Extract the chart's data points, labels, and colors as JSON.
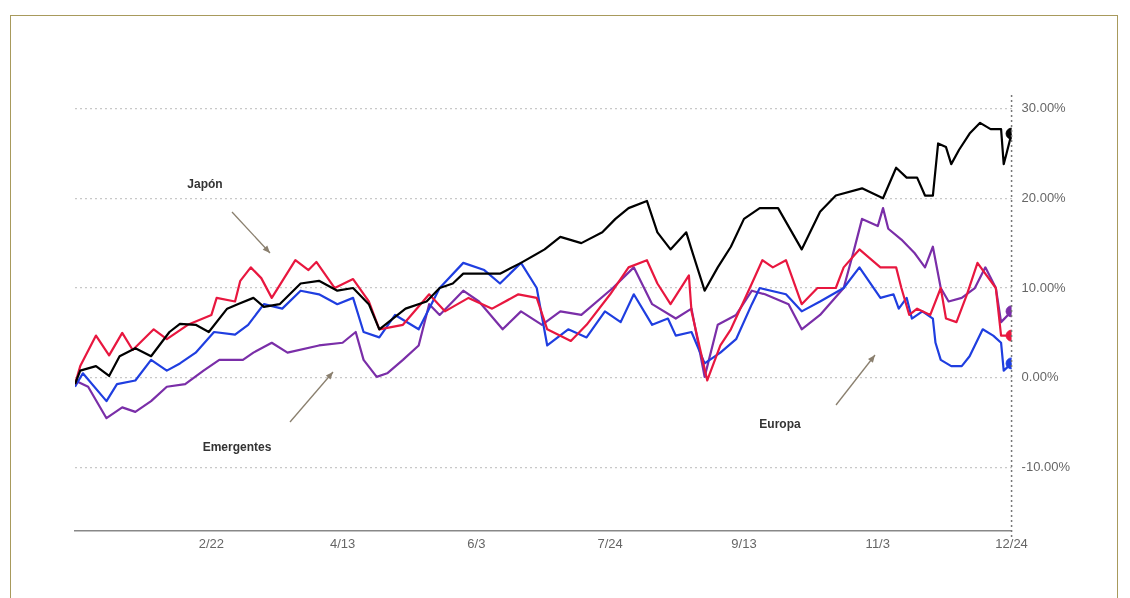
{
  "chart_data": {
    "type": "line",
    "xlim": [
      "--01-01",
      "--12-24"
    ],
    "ylim": [
      -17,
      31.5
    ],
    "xticks": [
      {
        "value": "--02-22",
        "label": "2/22"
      },
      {
        "value": "--04-13",
        "label": "4/13"
      },
      {
        "value": "--06-03",
        "label": "6/3"
      },
      {
        "value": "--07-24",
        "label": "7/24"
      },
      {
        "value": "--09-13",
        "label": "9/13"
      },
      {
        "value": "--11-03",
        "label": "11/3"
      },
      {
        "value": "--12-24",
        "label": "12/24"
      }
    ],
    "yticks": [
      {
        "value": -10,
        "label": "-10.00%"
      },
      {
        "value": 0,
        "label": "0.00%"
      },
      {
        "value": 10,
        "label": "10.00%"
      },
      {
        "value": 20,
        "label": "20.00%"
      },
      {
        "value": 30,
        "label": "30.00%"
      }
    ],
    "grid": "y",
    "legend": false,
    "line_style": "solid",
    "series": [
      {
        "color": "#000000",
        "x": [
          "--01-01",
          "--01-03",
          "--01-09",
          "--01-14",
          "--01-18",
          "--01-24",
          "--01-30",
          "--02-06",
          "--02-10",
          "--02-16",
          "--02-21",
          "--02-28",
          "--03-04",
          "--03-10",
          "--03-14",
          "--03-20",
          "--03-28",
          "--04-04",
          "--04-11",
          "--04-17",
          "--04-23",
          "--04-27",
          "--05-07",
          "--05-15",
          "--05-20",
          "--05-25",
          "--05-29",
          "--06-12",
          "--06-20",
          "--06-29",
          "--07-05",
          "--07-13",
          "--07-21",
          "--07-26",
          "--07-31",
          "--08-07",
          "--08-11",
          "--08-16",
          "--08-22",
          "--08-24",
          "--08-29",
          "--09-03",
          "--09-08",
          "--09-13",
          "--09-19",
          "--09-26",
          "--10-05",
          "--10-12",
          "--10-18",
          "--10-28",
          "--11-05",
          "--11-10",
          "--11-14",
          "--11-18",
          "--11-21",
          "--11-24",
          "--11-26",
          "--11-29",
          "--12-01",
          "--12-04",
          "--12-08",
          "--12-12",
          "--12-16",
          "--12-20",
          "--12-21",
          "--12-22",
          "--12-24"
        ],
        "values": [
          -0.7,
          0.8,
          1.3,
          0.2,
          2.4,
          3.3,
          2.4,
          5.1,
          6,
          5.9,
          5.1,
          7.7,
          8.2,
          8.9,
          7.9,
          8.2,
          10.5,
          10.8,
          9.7,
          10,
          8.2,
          5.4,
          7.7,
          8.5,
          10,
          10.5,
          11.6,
          11.6,
          12.8,
          14.3,
          15.7,
          15,
          16.2,
          17.7,
          18.9,
          19.7,
          16.2,
          14.3,
          16.2,
          14.3,
          9.7,
          12.3,
          14.6,
          17.7,
          18.9,
          18.9,
          14.3,
          18.5,
          20.3,
          21.1,
          20,
          23.4,
          22.3,
          22.3,
          20.3,
          20.3,
          26.1,
          25.7,
          23.8,
          25.4,
          27.2,
          28.4,
          27.7,
          27.7,
          23.8,
          24.9,
          27.2
        ]
      },
      {
        "color": "#e8173f",
        "x": [
          "--01-01",
          "--01-03",
          "--01-09",
          "--01-14",
          "--01-19",
          "--01-23",
          "--01-31",
          "--02-05",
          "--02-13",
          "--02-22",
          "--02-24",
          "--03-03",
          "--03-05",
          "--03-09",
          "--03-13",
          "--03-17",
          "--03-26",
          "--03-31",
          "--04-03",
          "--04-10",
          "--04-17",
          "--04-23",
          "--04-27",
          "--05-06",
          "--05-16",
          "--05-22",
          "--05-31",
          "--06-09",
          "--06-19",
          "--06-26",
          "--06-30",
          "--07-09",
          "--07-15",
          "--07-24",
          "--07-31",
          "--08-07",
          "--08-11",
          "--08-16",
          "--08-23",
          "--08-24",
          "--08-30",
          "--09-04",
          "--09-08",
          "--09-16",
          "--09-20",
          "--09-24",
          "--09-29",
          "--10-05",
          "--10-11",
          "--10-18",
          "--10-21",
          "--10-27",
          "--11-04",
          "--11-10",
          "--11-12",
          "--11-15",
          "--11-18",
          "--11-23",
          "--11-27",
          "--11-29",
          "--12-03",
          "--12-07",
          "--12-11",
          "--12-13",
          "--12-18",
          "--12-20",
          "--12-24"
        ],
        "values": [
          -0.7,
          1.3,
          4.7,
          2.5,
          5,
          3.1,
          5.4,
          4.3,
          5.9,
          7,
          8.9,
          8.5,
          10.8,
          12.3,
          11.1,
          8.9,
          13.1,
          12,
          12.9,
          10,
          11,
          8.5,
          5.4,
          5.9,
          9.3,
          7.4,
          8.9,
          7.7,
          9.3,
          8.9,
          5.4,
          4.1,
          5.9,
          9.3,
          12.3,
          13.1,
          10.5,
          8.2,
          11.4,
          7.4,
          -0.3,
          3.6,
          5.4,
          10.5,
          13.1,
          12.3,
          13.1,
          8.2,
          10,
          10,
          12.3,
          14.3,
          12.3,
          12.3,
          10,
          7,
          7.7,
          7,
          10,
          6.6,
          6.2,
          9.3,
          12.8,
          12,
          10,
          4.7,
          4.7
        ]
      },
      {
        "color": "#1f3ee0",
        "x": [
          "--01-01",
          "--01-04",
          "--01-13",
          "--01-17",
          "--01-24",
          "--01-30",
          "--02-05",
          "--02-10",
          "--02-16",
          "--02-23",
          "--03-03",
          "--03-08",
          "--03-14",
          "--03-21",
          "--03-28",
          "--04-04",
          "--04-11",
          "--04-17",
          "--04-21",
          "--04-27",
          "--05-03",
          "--05-12",
          "--05-20",
          "--05-29",
          "--06-06",
          "--06-12",
          "--06-20",
          "--06-26",
          "--06-30",
          "--07-08",
          "--07-15",
          "--07-22",
          "--07-28",
          "--08-02",
          "--08-09",
          "--08-15",
          "--08-18",
          "--08-24",
          "--08-29",
          "--09-04",
          "--09-10",
          "--09-16",
          "--09-19",
          "--09-29",
          "--10-05",
          "--10-12",
          "--10-21",
          "--10-27",
          "--11-04",
          "--11-09",
          "--11-11",
          "--11-14",
          "--11-16",
          "--11-20",
          "--11-24",
          "--11-25",
          "--11-27",
          "--12-01",
          "--12-05",
          "--12-08",
          "--12-13",
          "--12-17",
          "--12-20",
          "--12-21",
          "--12-24"
        ],
        "values": [
          -1,
          0.5,
          -2.6,
          -0.7,
          -0.3,
          2,
          0.8,
          1.6,
          2.8,
          5.1,
          4.8,
          5.9,
          8.2,
          7.7,
          9.7,
          9.3,
          8.2,
          8.9,
          5.1,
          4.5,
          7,
          5.4,
          10,
          12.8,
          12,
          10.5,
          12.8,
          10,
          3.6,
          5.4,
          4.5,
          7.4,
          6.2,
          9.3,
          5.9,
          6.6,
          4.7,
          5.1,
          1.6,
          2.8,
          4.3,
          8.2,
          10,
          9.3,
          7.4,
          8.5,
          10,
          12.3,
          8.9,
          9.3,
          7.7,
          8.9,
          6.6,
          7.4,
          6.6,
          3.9,
          2,
          1.3,
          1.3,
          2.4,
          5.4,
          4.7,
          3.9,
          0.8,
          1.6
        ]
      },
      {
        "color": "#7a2ea8",
        "x": [
          "--01-01",
          "--01-06",
          "--01-13",
          "--01-19",
          "--01-24",
          "--01-30",
          "--02-05",
          "--02-12",
          "--02-19",
          "--02-25",
          "--03-06",
          "--03-10",
          "--03-17",
          "--03-23",
          "--04-04",
          "--04-13",
          "--04-18",
          "--04-21",
          "--04-26",
          "--04-30",
          "--05-06",
          "--05-12",
          "--05-16",
          "--05-20",
          "--05-29",
          "--06-04",
          "--06-13",
          "--06-20",
          "--06-28",
          "--07-05",
          "--07-13",
          "--07-25",
          "--08-02",
          "--08-09",
          "--08-18",
          "--08-24",
          "--08-29",
          "--09-03",
          "--09-10",
          "--09-16",
          "--09-21",
          "--09-30",
          "--10-05",
          "--10-12",
          "--10-21",
          "--10-25",
          "--10-28",
          "--11-03",
          "--11-05",
          "--11-07",
          "--11-12",
          "--11-17",
          "--11-21",
          "--11-24",
          "--11-27",
          "--11-30",
          "--12-05",
          "--12-10",
          "--12-14",
          "--12-18",
          "--12-20",
          "--12-24"
        ],
        "values": [
          -0.3,
          -1,
          -4.5,
          -3.3,
          -3.8,
          -2.6,
          -1,
          -0.7,
          0.8,
          2,
          2,
          2.8,
          3.9,
          2.8,
          3.6,
          3.9,
          5.1,
          2,
          0.1,
          0.5,
          2,
          3.6,
          8.2,
          7,
          9.7,
          8.5,
          5.4,
          7.4,
          5.9,
          7.4,
          7,
          10,
          12.3,
          8.2,
          6.6,
          7.7,
          0.1,
          5.9,
          7,
          9.7,
          9.3,
          8.2,
          5.4,
          7,
          10,
          14.3,
          17.7,
          16.9,
          18.9,
          16.6,
          15.4,
          13.9,
          12.3,
          14.6,
          10,
          8.5,
          8.9,
          10,
          12.3,
          10,
          6.2,
          7.4
        ]
      },
      {
        "type": "scatter",
        "marker": "circle",
        "color": "#000000",
        "x": [
          "--12-24"
        ],
        "values": [
          27.2
        ]
      },
      {
        "type": "scatter",
        "marker": "circle",
        "color": "#e8173f",
        "x": [
          "--12-24"
        ],
        "values": [
          4.7
        ]
      },
      {
        "type": "scatter",
        "marker": "circle",
        "color": "#1f3ee0",
        "x": [
          "--12-24"
        ],
        "values": [
          1.6
        ]
      },
      {
        "type": "scatter",
        "marker": "circle",
        "color": "#7a2ea8",
        "x": [
          "--12-24"
        ],
        "values": [
          7.4
        ]
      }
    ],
    "ref_lines": [
      {
        "axis": "x",
        "value": "--12-24",
        "line_style": "dotted",
        "color": "#777777"
      }
    ],
    "annotations": [
      "Japón",
      "Emergentes",
      "Europa"
    ]
  }
}
